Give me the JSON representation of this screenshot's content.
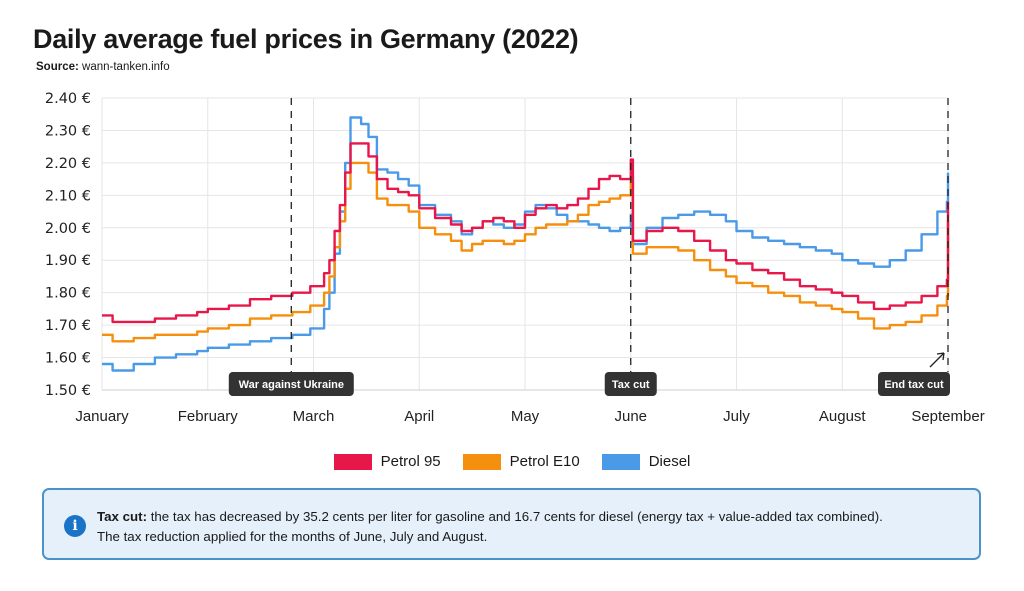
{
  "header": {
    "title": "Daily average fuel prices in Germany (2022)",
    "source_label": "Source:",
    "source_value": "wann-tanken.info"
  },
  "colors": {
    "petrol95": "#e8174a",
    "e10": "#f58f0e",
    "diesel": "#4a9ae8",
    "annotation_bg": "#333333",
    "info_border": "#4a93c8",
    "info_bg": "#e6f0fa",
    "info_icon": "#1a73c7"
  },
  "chart_data": {
    "type": "line",
    "title": "Daily average fuel prices in Germany (2022)",
    "xlabel": "",
    "ylabel": "",
    "ylim": [
      1.5,
      2.4
    ],
    "yticks": [
      1.5,
      1.6,
      1.7,
      1.8,
      1.9,
      2.0,
      2.1,
      2.2,
      2.3,
      2.4
    ],
    "ytick_labels": [
      "1.50 €",
      "1.60 €",
      "1.70 €",
      "1.80 €",
      "1.90 €",
      "2.00 €",
      "2.10 €",
      "2.20 €",
      "2.30 €",
      "2.40 €"
    ],
    "xlim": [
      0,
      8
    ],
    "x_unit": "month index (0 = January 1)",
    "xticks": [
      0,
      1,
      2,
      3,
      4,
      5,
      6,
      7,
      8
    ],
    "xtick_labels": [
      "January",
      "February",
      "March",
      "April",
      "May",
      "June",
      "July",
      "August",
      "September"
    ],
    "grid": true,
    "legend_position": "bottom-center",
    "series": [
      {
        "name": "Petrol 95",
        "points": [
          [
            0,
            1.73
          ],
          [
            0.1,
            1.71
          ],
          [
            0.3,
            1.71
          ],
          [
            0.5,
            1.72
          ],
          [
            0.7,
            1.73
          ],
          [
            0.9,
            1.74
          ],
          [
            1.0,
            1.75
          ],
          [
            1.2,
            1.76
          ],
          [
            1.4,
            1.78
          ],
          [
            1.6,
            1.79
          ],
          [
            1.8,
            1.8
          ],
          [
            1.9,
            1.8
          ],
          [
            1.97,
            1.82
          ],
          [
            2.1,
            1.86
          ],
          [
            2.15,
            1.9
          ],
          [
            2.2,
            1.99
          ],
          [
            2.25,
            2.07
          ],
          [
            2.3,
            2.17
          ],
          [
            2.35,
            2.26
          ],
          [
            2.45,
            2.26
          ],
          [
            2.52,
            2.22
          ],
          [
            2.6,
            2.15
          ],
          [
            2.7,
            2.12
          ],
          [
            2.8,
            2.11
          ],
          [
            2.9,
            2.1
          ],
          [
            3.0,
            2.06
          ],
          [
            3.15,
            2.03
          ],
          [
            3.3,
            2.01
          ],
          [
            3.4,
            1.99
          ],
          [
            3.5,
            2.0
          ],
          [
            3.6,
            2.02
          ],
          [
            3.7,
            2.03
          ],
          [
            3.8,
            2.02
          ],
          [
            3.9,
            2.0
          ],
          [
            4.0,
            2.04
          ],
          [
            4.1,
            2.06
          ],
          [
            4.2,
            2.07
          ],
          [
            4.3,
            2.06
          ],
          [
            4.4,
            2.07
          ],
          [
            4.5,
            2.09
          ],
          [
            4.6,
            2.12
          ],
          [
            4.7,
            2.15
          ],
          [
            4.8,
            2.16
          ],
          [
            4.9,
            2.15
          ],
          [
            5.0,
            2.21
          ],
          [
            5.02,
            1.96
          ],
          [
            5.15,
            1.99
          ],
          [
            5.3,
            2.0
          ],
          [
            5.45,
            1.99
          ],
          [
            5.6,
            1.96
          ],
          [
            5.75,
            1.93
          ],
          [
            5.9,
            1.9
          ],
          [
            6.0,
            1.89
          ],
          [
            6.15,
            1.87
          ],
          [
            6.3,
            1.86
          ],
          [
            6.45,
            1.84
          ],
          [
            6.6,
            1.82
          ],
          [
            6.75,
            1.81
          ],
          [
            6.9,
            1.8
          ],
          [
            7.0,
            1.79
          ],
          [
            7.15,
            1.77
          ],
          [
            7.3,
            1.75
          ],
          [
            7.45,
            1.76
          ],
          [
            7.6,
            1.77
          ],
          [
            7.75,
            1.79
          ],
          [
            7.9,
            1.82
          ],
          [
            7.99,
            1.84
          ],
          [
            8.0,
            2.08
          ]
        ]
      },
      {
        "name": "Petrol E10",
        "points": [
          [
            0,
            1.67
          ],
          [
            0.1,
            1.65
          ],
          [
            0.3,
            1.66
          ],
          [
            0.5,
            1.67
          ],
          [
            0.7,
            1.67
          ],
          [
            0.9,
            1.68
          ],
          [
            1.0,
            1.69
          ],
          [
            1.2,
            1.7
          ],
          [
            1.4,
            1.72
          ],
          [
            1.6,
            1.73
          ],
          [
            1.8,
            1.74
          ],
          [
            1.9,
            1.74
          ],
          [
            1.97,
            1.76
          ],
          [
            2.1,
            1.8
          ],
          [
            2.15,
            1.85
          ],
          [
            2.2,
            1.94
          ],
          [
            2.25,
            2.02
          ],
          [
            2.3,
            2.12
          ],
          [
            2.35,
            2.2
          ],
          [
            2.45,
            2.2
          ],
          [
            2.52,
            2.17
          ],
          [
            2.6,
            2.09
          ],
          [
            2.7,
            2.07
          ],
          [
            2.8,
            2.07
          ],
          [
            2.9,
            2.05
          ],
          [
            3.0,
            2.0
          ],
          [
            3.15,
            1.98
          ],
          [
            3.3,
            1.96
          ],
          [
            3.4,
            1.93
          ],
          [
            3.5,
            1.95
          ],
          [
            3.6,
            1.96
          ],
          [
            3.7,
            1.96
          ],
          [
            3.8,
            1.95
          ],
          [
            3.9,
            1.96
          ],
          [
            4.0,
            1.98
          ],
          [
            4.1,
            2.0
          ],
          [
            4.2,
            2.01
          ],
          [
            4.3,
            2.01
          ],
          [
            4.4,
            2.02
          ],
          [
            4.5,
            2.04
          ],
          [
            4.6,
            2.07
          ],
          [
            4.7,
            2.08
          ],
          [
            4.8,
            2.09
          ],
          [
            4.9,
            2.1
          ],
          [
            5.0,
            2.16
          ],
          [
            5.02,
            1.92
          ],
          [
            5.15,
            1.94
          ],
          [
            5.3,
            1.94
          ],
          [
            5.45,
            1.93
          ],
          [
            5.6,
            1.9
          ],
          [
            5.75,
            1.87
          ],
          [
            5.9,
            1.85
          ],
          [
            6.0,
            1.83
          ],
          [
            6.15,
            1.82
          ],
          [
            6.3,
            1.8
          ],
          [
            6.45,
            1.79
          ],
          [
            6.6,
            1.77
          ],
          [
            6.75,
            1.76
          ],
          [
            6.9,
            1.75
          ],
          [
            7.0,
            1.74
          ],
          [
            7.15,
            1.72
          ],
          [
            7.3,
            1.69
          ],
          [
            7.45,
            1.7
          ],
          [
            7.6,
            1.71
          ],
          [
            7.75,
            1.73
          ],
          [
            7.9,
            1.76
          ],
          [
            7.99,
            1.79
          ],
          [
            8.0,
            2.02
          ]
        ]
      },
      {
        "name": "Diesel",
        "points": [
          [
            0,
            1.58
          ],
          [
            0.1,
            1.56
          ],
          [
            0.3,
            1.58
          ],
          [
            0.5,
            1.6
          ],
          [
            0.7,
            1.61
          ],
          [
            0.9,
            1.62
          ],
          [
            1.0,
            1.63
          ],
          [
            1.2,
            1.64
          ],
          [
            1.4,
            1.65
          ],
          [
            1.6,
            1.66
          ],
          [
            1.8,
            1.67
          ],
          [
            1.9,
            1.67
          ],
          [
            1.97,
            1.69
          ],
          [
            2.1,
            1.75
          ],
          [
            2.15,
            1.8
          ],
          [
            2.2,
            1.92
          ],
          [
            2.25,
            2.05
          ],
          [
            2.3,
            2.2
          ],
          [
            2.35,
            2.34
          ],
          [
            2.45,
            2.32
          ],
          [
            2.52,
            2.28
          ],
          [
            2.6,
            2.18
          ],
          [
            2.7,
            2.17
          ],
          [
            2.8,
            2.15
          ],
          [
            2.9,
            2.13
          ],
          [
            3.0,
            2.07
          ],
          [
            3.15,
            2.04
          ],
          [
            3.3,
            2.02
          ],
          [
            3.4,
            1.98
          ],
          [
            3.5,
            2.0
          ],
          [
            3.6,
            2.02
          ],
          [
            3.7,
            2.01
          ],
          [
            3.8,
            2.0
          ],
          [
            3.9,
            2.01
          ],
          [
            4.0,
            2.05
          ],
          [
            4.1,
            2.07
          ],
          [
            4.2,
            2.06
          ],
          [
            4.3,
            2.04
          ],
          [
            4.4,
            2.02
          ],
          [
            4.5,
            2.02
          ],
          [
            4.6,
            2.01
          ],
          [
            4.7,
            2.0
          ],
          [
            4.8,
            1.99
          ],
          [
            4.9,
            2.0
          ],
          [
            5.0,
            2.04
          ],
          [
            5.02,
            1.95
          ],
          [
            5.15,
            2.0
          ],
          [
            5.3,
            2.03
          ],
          [
            5.45,
            2.04
          ],
          [
            5.6,
            2.05
          ],
          [
            5.75,
            2.04
          ],
          [
            5.9,
            2.02
          ],
          [
            6.0,
            1.99
          ],
          [
            6.15,
            1.97
          ],
          [
            6.3,
            1.96
          ],
          [
            6.45,
            1.95
          ],
          [
            6.6,
            1.94
          ],
          [
            6.75,
            1.93
          ],
          [
            6.9,
            1.92
          ],
          [
            7.0,
            1.9
          ],
          [
            7.15,
            1.89
          ],
          [
            7.3,
            1.88
          ],
          [
            7.45,
            1.9
          ],
          [
            7.6,
            1.93
          ],
          [
            7.75,
            1.98
          ],
          [
            7.9,
            2.05
          ],
          [
            7.99,
            2.08
          ],
          [
            8.0,
            2.17
          ]
        ]
      }
    ],
    "annotations": [
      {
        "label": "War against Ukraine",
        "x": 1.79
      },
      {
        "label": "Tax cut",
        "x": 5.0
      },
      {
        "label": "End tax cut",
        "x": 8.0
      }
    ]
  },
  "legend": {
    "items": [
      "Petrol 95",
      "Petrol E10",
      "Diesel"
    ]
  },
  "info_box": {
    "icon_glyph": "i",
    "bold_label": "Tax cut:",
    "line1": " the tax has decreased by 35.2 cents per liter for gasoline and 16.7 cents for diesel (energy tax + value-added tax combined).",
    "line2": "The tax reduction applied for the months of June, July and August."
  }
}
